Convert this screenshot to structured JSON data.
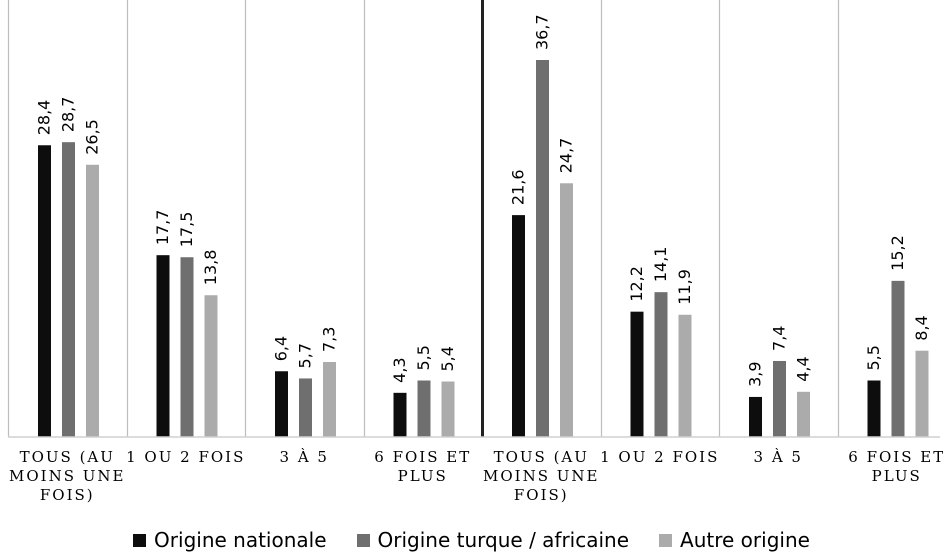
{
  "chart_data": {
    "type": "bar",
    "categories": [
      "TOUS (AU MOINS UNE FOIS)",
      "1 OU 2 FOIS",
      "3 À 5",
      "6 FOIS ET PLUS",
      "TOUS (AU MOINS UNE FOIS)",
      "1 OU 2 FOIS",
      "3 À 5",
      "6 FOIS ET PLUS"
    ],
    "category_lines": [
      [
        "TOUS (AU",
        "MOINS UNE",
        "FOIS)"
      ],
      [
        "1 OU 2 FOIS"
      ],
      [
        "3 À 5"
      ],
      [
        "6 FOIS ET",
        "PLUS"
      ],
      [
        "TOUS (AU",
        "MOINS UNE",
        "FOIS)"
      ],
      [
        "1 OU 2 FOIS"
      ],
      [
        "3 À 5"
      ],
      [
        "6 FOIS ET",
        "PLUS"
      ]
    ],
    "series": [
      {
        "name": "Origine nationale",
        "color": "#0d0d0d",
        "values": [
          28.4,
          17.7,
          6.4,
          4.3,
          21.6,
          12.2,
          3.9,
          5.5
        ],
        "labels": [
          "28,4",
          "17,7",
          "6,4",
          "4,3",
          "21,6",
          "12,2",
          "3,9",
          "5,5"
        ]
      },
      {
        "name": "Origine turque / africaine",
        "color": "#6f6f6f",
        "values": [
          28.7,
          17.5,
          5.7,
          5.5,
          36.7,
          14.1,
          7.4,
          15.2
        ],
        "labels": [
          "28,7",
          "17,5",
          "5,7",
          "5,5",
          "36,7",
          "14,1",
          "7,4",
          "15,2"
        ]
      },
      {
        "name": "Autre origine",
        "color": "#ababab",
        "values": [
          26.5,
          13.8,
          7.3,
          5.4,
          24.7,
          11.9,
          4.4,
          8.4
        ],
        "labels": [
          "26,5",
          "13,8",
          "7,3",
          "5,4",
          "24,7",
          "11,9",
          "4,4",
          "8,4"
        ]
      }
    ],
    "ylim": [
      0,
      42
    ],
    "grid": false,
    "legend": "bottom",
    "data_labels": true
  }
}
